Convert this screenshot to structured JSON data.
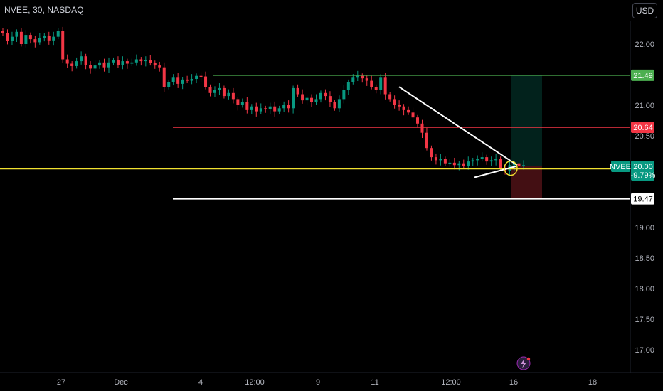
{
  "header": {
    "symbol_line": "NVEE, 30, NASDAQ",
    "currency_button": "USD"
  },
  "chart_data": {
    "type": "candlestick",
    "symbol": "NVEE",
    "interval": "30",
    "exchange": "NASDAQ",
    "currency": "USD",
    "y_ticks": [
      22.0,
      21.5,
      21.0,
      20.5,
      20.0,
      19.5,
      19.0,
      18.5,
      18.0,
      17.5,
      17.0
    ],
    "y_tick_labels": [
      "22.00",
      "21.00",
      "20.50",
      "20.00",
      "19.00",
      "18.50",
      "18.00",
      "17.50",
      "17.00"
    ],
    "x_tick_labels": [
      "27",
      "Dec",
      "4",
      "12:00",
      "9",
      "11",
      "12:00",
      "16",
      "18"
    ],
    "price_series": [
      22.18,
      22.05,
      22.12,
      22.2,
      22.0,
      22.15,
      22.08,
      22.03,
      22.1,
      22.14,
      22.06,
      22.12,
      22.22,
      21.75,
      21.68,
      21.64,
      21.72,
      21.8,
      21.66,
      21.6,
      21.65,
      21.7,
      21.62,
      21.7,
      21.74,
      21.66,
      21.72,
      21.68,
      21.7,
      21.75,
      21.72,
      21.74,
      21.69,
      21.65,
      21.62,
      21.3,
      21.38,
      21.45,
      21.35,
      21.42,
      21.4,
      21.43,
      21.48,
      21.47,
      21.3,
      21.2,
      21.25,
      21.28,
      21.15,
      21.2,
      21.1,
      21.0,
      21.05,
      20.92,
      20.98,
      20.9,
      20.95,
      20.93,
      20.98,
      20.9,
      20.95,
      21.0,
      20.95,
      21.28,
      21.18,
      21.08,
      21.12,
      21.05,
      21.1,
      21.2,
      21.15,
      21.05,
      20.95,
      21.1,
      21.25,
      21.38,
      21.45,
      21.48,
      21.44,
      21.4,
      21.3,
      21.25,
      21.45,
      21.18,
      21.1,
      21.0,
      20.98,
      20.92,
      20.88,
      20.8,
      20.7,
      20.55,
      20.3,
      20.15,
      20.1,
      20.12,
      20.05,
      20.06,
      20.02,
      20.05,
      20.0,
      20.08,
      20.1,
      20.12,
      20.15,
      20.08,
      20.1,
      20.12,
      19.97,
      19.92,
      20.02,
      20.05,
      20.0,
      20.02
    ],
    "horizontal_levels": [
      {
        "label": "21.49",
        "value": 21.49,
        "color": "#4caf50",
        "text_color": "#ffffff"
      },
      {
        "label": "20.64",
        "value": 20.64,
        "color": "#f23645",
        "text_color": "#ffffff"
      },
      {
        "label": "19.47",
        "value": 19.47,
        "color": "#ffffff",
        "text_color": "#000000"
      },
      {
        "value": 19.96,
        "color": "#f0e030"
      }
    ],
    "current_price": {
      "symbol": "NVEE",
      "value": 20.0,
      "label": "20.00",
      "change": "-9.79%",
      "color": "#089981"
    },
    "position": {
      "entry": 20.0,
      "target": 21.49,
      "stop": 19.47
    },
    "colors": {
      "up": "#089981",
      "down": "#f23645",
      "background": "#000000"
    }
  }
}
